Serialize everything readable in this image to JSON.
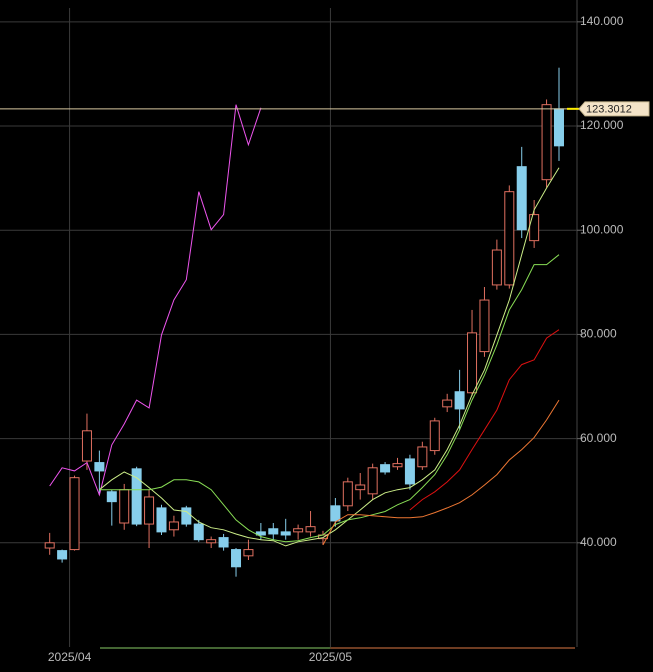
{
  "chart_data": {
    "type": "candlestick",
    "up_color": "#87ceeb",
    "down_color": "#e07060",
    "xlim": [
      -4,
      42.45
    ],
    "ylim": [
      20,
      144
    ],
    "xticks": [
      {
        "value": 1.6,
        "label": "2025/04"
      },
      {
        "value": 22.6,
        "label": "2025/05"
      }
    ],
    "yticks": [
      {
        "value": 40,
        "label": "40.000"
      },
      {
        "value": 60,
        "label": "60.000"
      },
      {
        "value": 80,
        "label": "80.000"
      },
      {
        "value": 100,
        "label": "100.000"
      },
      {
        "value": 120,
        "label": "120.000"
      },
      {
        "value": 140,
        "label": "140.000"
      }
    ],
    "grid": true,
    "last_price": 123.3012,
    "ohlc": [
      [
        40.0,
        41.9,
        37.7,
        39.0
      ],
      [
        36.9,
        38.7,
        36.2,
        38.5
      ],
      [
        52.5,
        52.9,
        38.5,
        38.7
      ],
      [
        61.5,
        64.8,
        54.0,
        55.7
      ],
      [
        53.8,
        57.7,
        49.2,
        55.4
      ],
      [
        47.9,
        50.2,
        43.3,
        49.8
      ],
      [
        50.2,
        51.3,
        42.5,
        43.8
      ],
      [
        43.6,
        54.6,
        43.2,
        54.2
      ],
      [
        48.8,
        50.2,
        39.0,
        43.6
      ],
      [
        42.1,
        47.3,
        41.5,
        46.7
      ],
      [
        44.0,
        45.2,
        41.2,
        42.5
      ],
      [
        43.6,
        47.1,
        43.1,
        46.7
      ],
      [
        40.6,
        44.4,
        40.2,
        43.6
      ],
      [
        40.6,
        41.2,
        39.0,
        40.0
      ],
      [
        39.2,
        41.7,
        38.5,
        41.0
      ],
      [
        35.4,
        39.0,
        33.5,
        38.7
      ],
      [
        38.7,
        40.6,
        36.7,
        37.5
      ],
      [
        41.5,
        43.8,
        40.6,
        42.1
      ],
      [
        41.7,
        43.8,
        40.6,
        42.7
      ],
      [
        41.5,
        44.6,
        40.6,
        42.1
      ],
      [
        42.7,
        43.5,
        40.6,
        42.1
      ],
      [
        43.1,
        46.1,
        41.2,
        42.1
      ],
      [
        41.5,
        42.3,
        39.6,
        40.8
      ],
      [
        44.2,
        48.6,
        43.1,
        47.1
      ],
      [
        51.7,
        52.5,
        46.1,
        47.1
      ],
      [
        51.1,
        53.4,
        48.3,
        50.2
      ],
      [
        54.4,
        55.2,
        48.3,
        49.4
      ],
      [
        53.6,
        55.5,
        53.1,
        55.0
      ],
      [
        55.2,
        56.3,
        54.0,
        54.6
      ],
      [
        51.3,
        56.9,
        50.2,
        56.1
      ],
      [
        58.4,
        59.4,
        54.0,
        54.6
      ],
      [
        63.4,
        64.0,
        56.9,
        57.7
      ],
      [
        67.4,
        68.6,
        65.1,
        66.1
      ],
      [
        65.7,
        73.2,
        61.7,
        69.0
      ],
      [
        80.3,
        84.7,
        68.2,
        68.8
      ],
      [
        86.6,
        89.1,
        75.7,
        76.7
      ],
      [
        96.2,
        98.2,
        88.6,
        89.5
      ],
      [
        107.4,
        108.6,
        88.8,
        89.5
      ],
      [
        100.1,
        116.0,
        98.5,
        112.2
      ],
      [
        103.0,
        105.8,
        96.6,
        98.0
      ],
      [
        124.1,
        125.1,
        108.2,
        109.7
      ],
      [
        116.2,
        131.2,
        113.3,
        123.3
      ]
    ],
    "series": [
      {
        "color": "#ee55ee",
        "values": [
          50.9,
          54.4,
          53.8,
          55.4,
          49.2,
          58.8,
          62.8,
          67.4,
          65.9,
          79.9,
          86.6,
          90.5,
          107.4,
          100.1,
          103.0,
          124.1,
          116.4,
          123.5,
          null,
          null,
          null,
          null,
          null,
          null,
          null,
          null,
          null,
          null,
          null,
          null,
          null,
          null,
          null,
          null,
          null,
          null,
          null,
          null,
          null,
          null,
          null,
          null
        ]
      },
      {
        "color": "#ccee88",
        "values": [
          null,
          null,
          null,
          null,
          50.2,
          52.1,
          53.6,
          52.5,
          50.6,
          48.6,
          46.3,
          46.0,
          44.0,
          42.9,
          42.5,
          41.7,
          41.0,
          40.6,
          40.4,
          39.4,
          40.2,
          40.6,
          41.0,
          42.5,
          44.4,
          46.3,
          48.3,
          49.6,
          50.2,
          50.6,
          52.1,
          54.0,
          57.9,
          62.6,
          68.4,
          73.2,
          79.9,
          86.6,
          95.3,
          103.9,
          108.1,
          112.0
        ]
      },
      {
        "color": "#88dd55",
        "values": [
          null,
          null,
          null,
          null,
          50.2,
          50.2,
          50.2,
          50.2,
          50.2,
          50.7,
          52.1,
          52.1,
          51.7,
          50.2,
          47.3,
          44.4,
          42.5,
          41.2,
          40.6,
          40.2,
          40.4,
          41.0,
          41.5,
          43.5,
          44.4,
          44.8,
          45.4,
          46.0,
          47.3,
          48.3,
          50.6,
          53.1,
          56.9,
          61.7,
          67.4,
          72.2,
          78.0,
          84.7,
          88.6,
          93.4,
          93.4,
          95.3
        ]
      },
      {
        "color": "#dd1111",
        "values": [
          null,
          null,
          null,
          null,
          null,
          null,
          null,
          null,
          null,
          null,
          null,
          null,
          null,
          null,
          null,
          null,
          null,
          null,
          null,
          null,
          null,
          null,
          null,
          null,
          null,
          null,
          null,
          null,
          null,
          46.3,
          48.3,
          49.8,
          51.7,
          54.0,
          57.9,
          61.7,
          65.5,
          71.3,
          74.2,
          75.1,
          79.3,
          80.9
        ]
      },
      {
        "color": "#ee7733",
        "values": [
          null,
          null,
          null,
          null,
          null,
          null,
          null,
          null,
          null,
          null,
          null,
          null,
          null,
          null,
          null,
          null,
          null,
          null,
          null,
          null,
          null,
          null,
          39.6,
          44.0,
          45.4,
          45.4,
          45.2,
          45.0,
          44.8,
          44.8,
          45.0,
          45.8,
          46.7,
          47.7,
          49.2,
          51.1,
          53.1,
          55.9,
          57.9,
          60.2,
          63.6,
          67.4
        ]
      }
    ]
  }
}
